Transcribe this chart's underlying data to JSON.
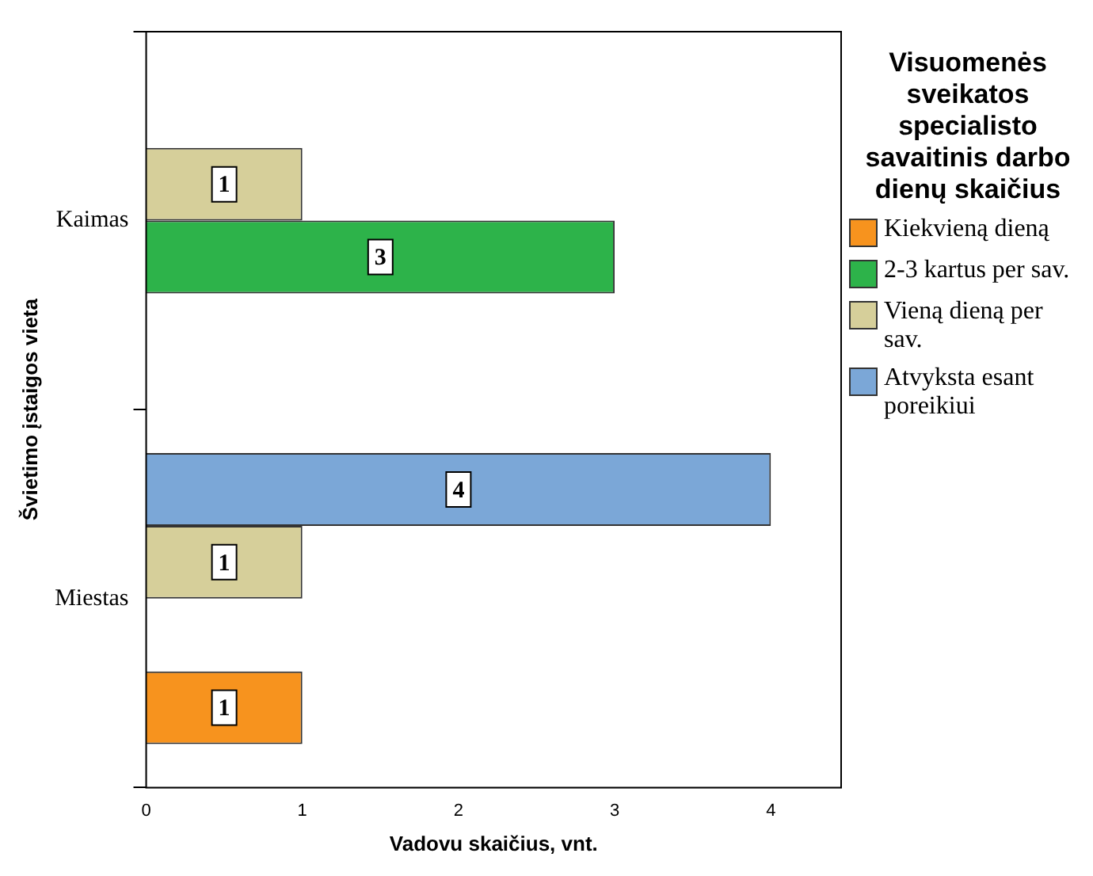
{
  "chart_data": {
    "type": "bar",
    "orientation": "horizontal",
    "categories": [
      "Kaimas",
      "Miestas"
    ],
    "xlabel": "Vadovu skaičius, vnt.",
    "ylabel": "Švietimo įstaigos vieta",
    "legend_title": "Visuomenės sveikatos specialisto savaitinis darbo dienų skaičius",
    "legend": "right",
    "data_labels": true,
    "xlim": [
      0,
      4.45
    ],
    "xticks": [
      0,
      1,
      2,
      3,
      4
    ],
    "series": [
      {
        "name": "Kiekvieną dieną",
        "color": "#f7931e",
        "values": [
          null,
          1
        ]
      },
      {
        "name": "2-3 kartus per sav.",
        "color": "#2db34a",
        "values": [
          3,
          null
        ]
      },
      {
        "name": "Vieną dieną per sav.",
        "color": "#d6cf9a",
        "values": [
          1,
          1
        ]
      },
      {
        "name": "Atvyksta esant poreikiui",
        "color": "#7ba7d7",
        "values": [
          null,
          4
        ]
      }
    ]
  }
}
